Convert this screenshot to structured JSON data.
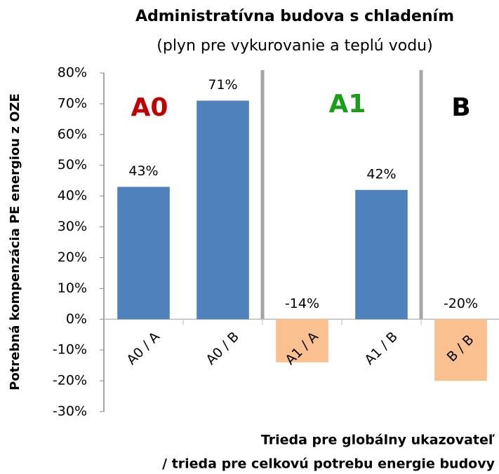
{
  "chart_data": {
    "type": "bar",
    "title": "Administratívna budova s chladením",
    "subtitle": "(plyn pre vykurovanie a teplú vodu)",
    "y_label": "Potrebná kompenzácia PE energiou z OZE",
    "x_label": [
      "Trieda pre globálny ukazovateľ",
      "/ trieda pre celkovú  potrebu energie budovy"
    ],
    "categories": [
      "A0 / A",
      "A0 / B",
      "A1 / A",
      "A1 / B",
      "B / B"
    ],
    "values": [
      43,
      71,
      -14,
      42,
      -20
    ],
    "value_labels": [
      "43%",
      "71%",
      "-14%",
      "42%",
      "-20%"
    ],
    "colors": [
      "#4f81bd",
      "#4f81bd",
      "#fac090",
      "#4f81bd",
      "#fac090"
    ],
    "ylim": [
      -30,
      80
    ],
    "yticks": [
      {
        "value": -30,
        "label": "-30%"
      },
      {
        "value": -20,
        "label": "-20%"
      },
      {
        "value": -10,
        "label": "-10%"
      },
      {
        "value": 0,
        "label": "0%"
      },
      {
        "value": 10,
        "label": "10%"
      },
      {
        "value": 20,
        "label": "20%"
      },
      {
        "value": 30,
        "label": "30%"
      },
      {
        "value": 40,
        "label": "40%"
      },
      {
        "value": 50,
        "label": "50%"
      },
      {
        "value": 60,
        "label": "60%"
      },
      {
        "value": 70,
        "label": "70%"
      },
      {
        "value": 80,
        "label": "80%"
      }
    ],
    "annotations": [
      {
        "text": "A0",
        "color": "#c00000"
      },
      {
        "text": "A1",
        "color": "#1a9e1a"
      },
      {
        "text": "B",
        "color": "#000000"
      }
    ],
    "grid": false
  }
}
